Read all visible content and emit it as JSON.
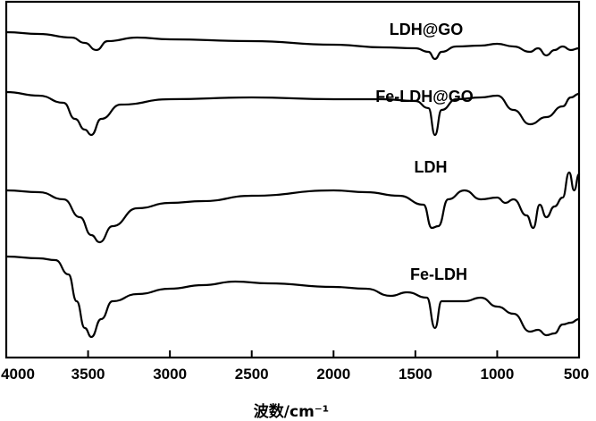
{
  "chart_data": {
    "type": "line",
    "xlabel": "波数/cm⁻¹",
    "ylabel": "",
    "xlim": [
      4000,
      500
    ],
    "x_reversed": true,
    "grid": false,
    "x_ticks": [
      "4000",
      "3500",
      "3000",
      "2500",
      "2000",
      "1500",
      "1000",
      "500"
    ],
    "series": [
      {
        "name": "LDH@GO",
        "points": [
          [
            4000,
            0.0
          ],
          [
            3800,
            0.02
          ],
          [
            3600,
            0.06
          ],
          [
            3520,
            0.12
          ],
          [
            3450,
            0.2
          ],
          [
            3380,
            0.1
          ],
          [
            3200,
            0.06
          ],
          [
            3000,
            0.08
          ],
          [
            2500,
            0.1
          ],
          [
            2000,
            0.14
          ],
          [
            1700,
            0.17
          ],
          [
            1500,
            0.18
          ],
          [
            1420,
            0.22
          ],
          [
            1380,
            0.3
          ],
          [
            1340,
            0.22
          ],
          [
            1250,
            0.16
          ],
          [
            1100,
            0.15
          ],
          [
            1000,
            0.13
          ],
          [
            900,
            0.16
          ],
          [
            800,
            0.22
          ],
          [
            750,
            0.18
          ],
          [
            700,
            0.26
          ],
          [
            650,
            0.2
          ],
          [
            600,
            0.16
          ],
          [
            550,
            0.2
          ],
          [
            500,
            0.18
          ]
        ]
      },
      {
        "name": "Fe-LDH@GO",
        "points": [
          [
            4000,
            0.0
          ],
          [
            3800,
            0.04
          ],
          [
            3650,
            0.12
          ],
          [
            3580,
            0.3
          ],
          [
            3520,
            0.42
          ],
          [
            3480,
            0.48
          ],
          [
            3420,
            0.3
          ],
          [
            3300,
            0.14
          ],
          [
            3000,
            0.08
          ],
          [
            2500,
            0.06
          ],
          [
            2000,
            0.08
          ],
          [
            1700,
            0.08
          ],
          [
            1500,
            0.1
          ],
          [
            1420,
            0.18
          ],
          [
            1380,
            0.48
          ],
          [
            1340,
            0.2
          ],
          [
            1250,
            0.08
          ],
          [
            1100,
            0.06
          ],
          [
            1000,
            0.04
          ],
          [
            900,
            0.2
          ],
          [
            800,
            0.36
          ],
          [
            700,
            0.28
          ],
          [
            600,
            0.16
          ],
          [
            550,
            0.06
          ],
          [
            500,
            0.02
          ]
        ]
      },
      {
        "name": "LDH",
        "points": [
          [
            4000,
            0.0
          ],
          [
            3800,
            0.02
          ],
          [
            3650,
            0.1
          ],
          [
            3550,
            0.3
          ],
          [
            3480,
            0.5
          ],
          [
            3430,
            0.58
          ],
          [
            3350,
            0.4
          ],
          [
            3200,
            0.2
          ],
          [
            3000,
            0.14
          ],
          [
            2800,
            0.12
          ],
          [
            2500,
            0.06
          ],
          [
            2000,
            0.0
          ],
          [
            1800,
            0.02
          ],
          [
            1600,
            0.06
          ],
          [
            1450,
            0.16
          ],
          [
            1400,
            0.42
          ],
          [
            1360,
            0.4
          ],
          [
            1300,
            0.1
          ],
          [
            1200,
            0.0
          ],
          [
            1100,
            0.1
          ],
          [
            1000,
            0.08
          ],
          [
            950,
            0.14
          ],
          [
            900,
            0.1
          ],
          [
            820,
            0.28
          ],
          [
            780,
            0.42
          ],
          [
            740,
            0.16
          ],
          [
            700,
            0.3
          ],
          [
            650,
            0.18
          ],
          [
            600,
            0.08
          ],
          [
            560,
            -0.2
          ],
          [
            530,
            0.0
          ],
          [
            500,
            -0.18
          ]
        ]
      },
      {
        "name": "Fe-LDH",
        "points": [
          [
            4000,
            0.0
          ],
          [
            3800,
            0.02
          ],
          [
            3700,
            0.04
          ],
          [
            3620,
            0.2
          ],
          [
            3570,
            0.5
          ],
          [
            3520,
            0.8
          ],
          [
            3480,
            0.9
          ],
          [
            3420,
            0.7
          ],
          [
            3350,
            0.5
          ],
          [
            3200,
            0.42
          ],
          [
            3000,
            0.36
          ],
          [
            2800,
            0.32
          ],
          [
            2600,
            0.28
          ],
          [
            2400,
            0.3
          ],
          [
            2000,
            0.34
          ],
          [
            1800,
            0.36
          ],
          [
            1650,
            0.44
          ],
          [
            1550,
            0.4
          ],
          [
            1430,
            0.46
          ],
          [
            1380,
            0.8
          ],
          [
            1340,
            0.5
          ],
          [
            1200,
            0.5
          ],
          [
            1100,
            0.46
          ],
          [
            1000,
            0.56
          ],
          [
            900,
            0.64
          ],
          [
            800,
            0.84
          ],
          [
            750,
            0.82
          ],
          [
            700,
            0.88
          ],
          [
            650,
            0.86
          ],
          [
            600,
            0.76
          ],
          [
            550,
            0.74
          ],
          [
            500,
            0.7
          ]
        ]
      }
    ]
  }
}
